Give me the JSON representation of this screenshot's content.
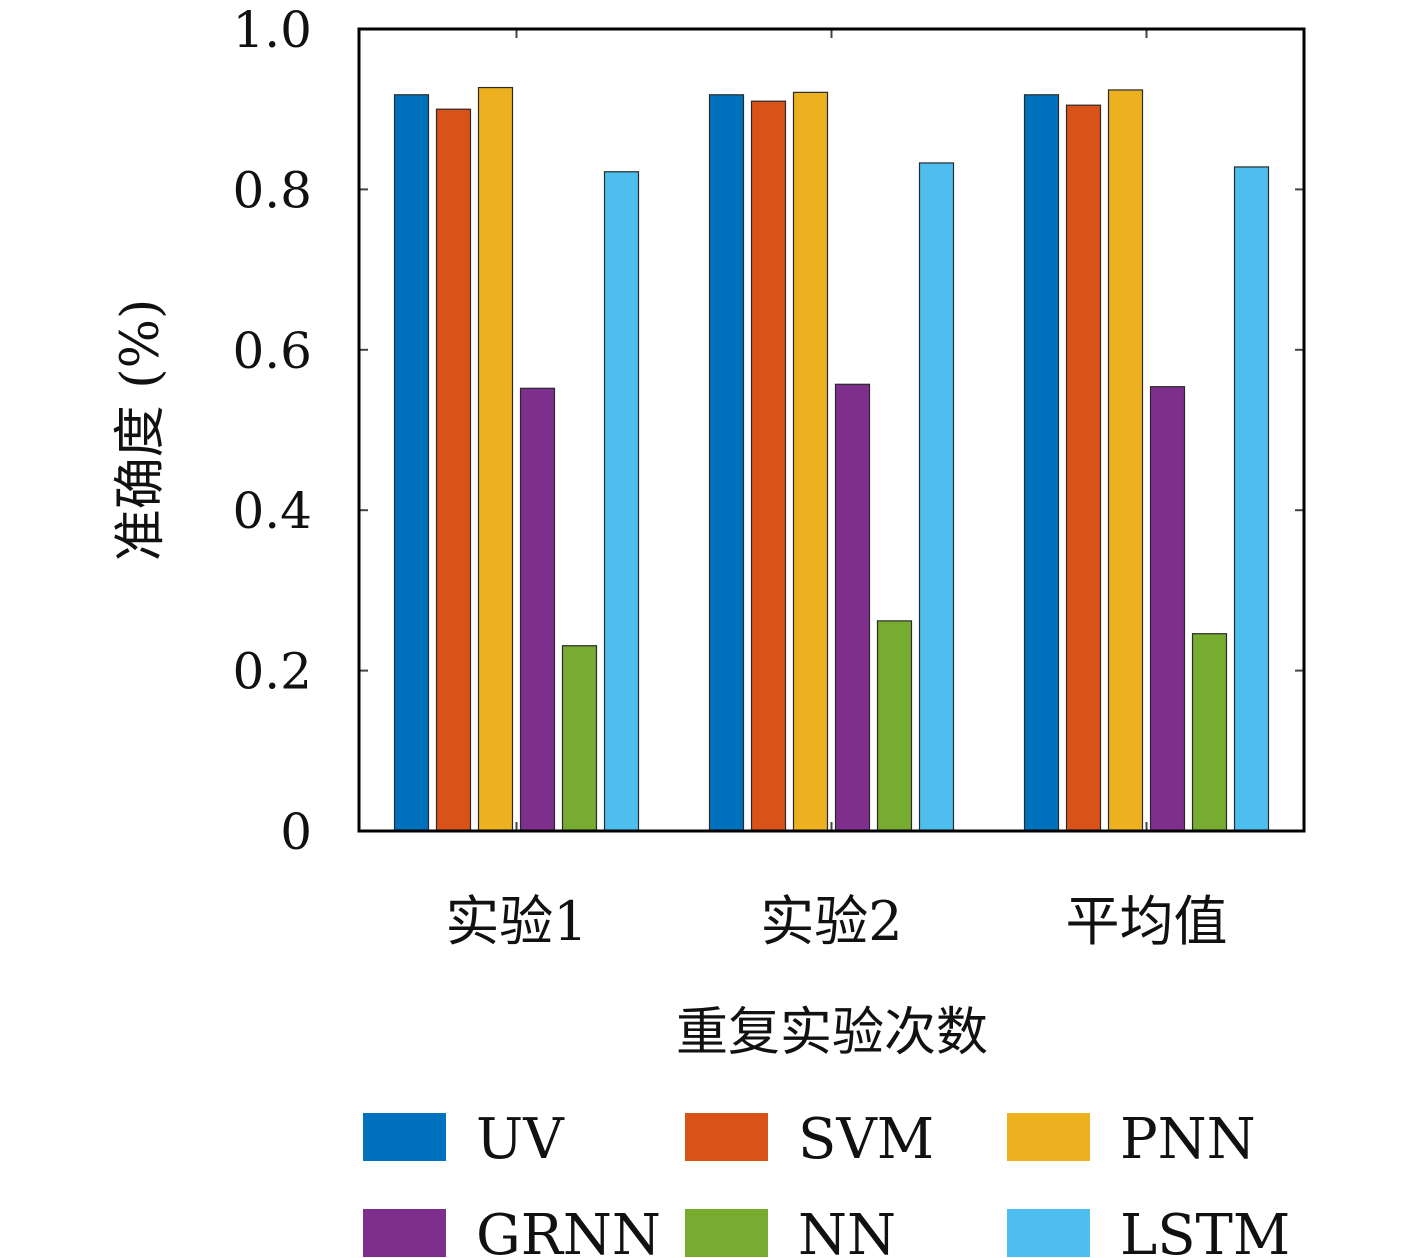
{
  "chart_data": {
    "type": "bar",
    "categories": [
      "实验1",
      "实验2",
      "平均值"
    ],
    "series": [
      {
        "name": "UV",
        "color": "#0072BD",
        "values": [
          0.918,
          0.918,
          0.918
        ]
      },
      {
        "name": "SVM",
        "color": "#D95319",
        "values": [
          0.9,
          0.91,
          0.905
        ]
      },
      {
        "name": "PNN",
        "color": "#EDB120",
        "values": [
          0.927,
          0.921,
          0.924
        ]
      },
      {
        "name": "GRNN",
        "color": "#7E2F8E",
        "values": [
          0.552,
          0.557,
          0.554
        ]
      },
      {
        "name": "NN",
        "color": "#77AC30",
        "values": [
          0.231,
          0.262,
          0.246
        ]
      },
      {
        "name": "LSTM",
        "color": "#4DBEEE",
        "values": [
          0.822,
          0.833,
          0.828
        ]
      }
    ],
    "xlabel": "重复实验次数",
    "ylabel": "准确度 (%)",
    "ylim": [
      0,
      1.0
    ],
    "yticks": [
      0,
      0.2,
      0.4,
      0.6,
      0.8,
      1.0
    ],
    "ytick_labels": [
      "0",
      "0.2",
      "0.4",
      "0.6",
      "0.8",
      "1.0"
    ],
    "grid": false,
    "legend_position": "bottom"
  }
}
